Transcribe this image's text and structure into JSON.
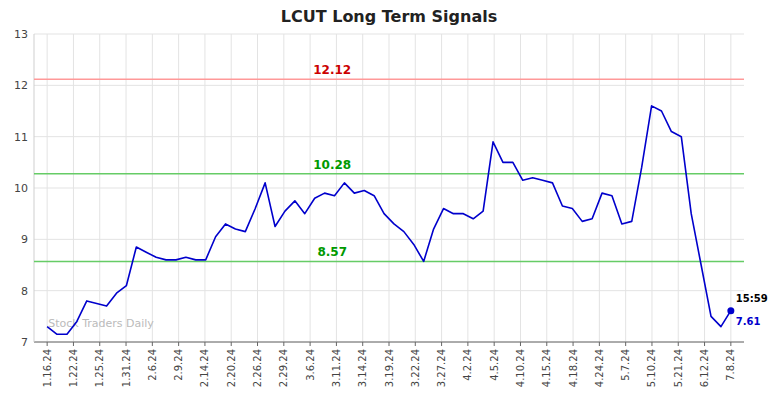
{
  "chart_data": {
    "type": "line",
    "title": "LCUT Long Term Signals",
    "x": [
      0,
      0.376812,
      0.753623,
      1.130435,
      1.507246,
      1.884058,
      2.26087,
      2.637681,
      3.014493,
      3.391304,
      3.768116,
      4.144928,
      4.521739,
      4.898551,
      5.275362,
      5.652174,
      6.028986,
      6.405797,
      6.782609,
      7.15942,
      7.536232,
      7.913043,
      8.289855,
      8.666667,
      9.043478,
      9.42029,
      9.797101,
      10.173913,
      10.550725,
      10.927536,
      11.304348,
      11.681159,
      12.057971,
      12.434783,
      12.811594,
      13.188406,
      13.565217,
      13.942029,
      14.318841,
      14.695652,
      15.072464,
      15.449275,
      15.826087,
      16.202899,
      16.57971,
      16.956522,
      17.333333,
      17.710145,
      18.086957,
      18.463768,
      18.84058,
      19.217391,
      19.594203,
      19.971014,
      20.347826,
      20.724638,
      21.101449,
      21.478261,
      21.855072,
      22.231884,
      22.608696,
      22.985507,
      23.362319,
      23.73913,
      24.115942,
      24.492754,
      24.869565,
      25.246377,
      25.623188,
      26
    ],
    "values": [
      7.3,
      7.15,
      7.15,
      7.4,
      7.8,
      7.75,
      7.7,
      7.95,
      8.1,
      8.85,
      8.75,
      8.65,
      8.6,
      8.6,
      8.65,
      8.6,
      8.6,
      9.05,
      9.3,
      9.2,
      9.15,
      9.6,
      10.1,
      9.25,
      9.55,
      9.75,
      9.5,
      9.8,
      9.9,
      9.85,
      10.1,
      9.9,
      9.95,
      9.85,
      9.5,
      9.3,
      9.15,
      8.9,
      8.57,
      9.2,
      9.6,
      9.5,
      9.5,
      9.4,
      9.55,
      10.9,
      10.5,
      10.5,
      10.15,
      10.2,
      10.15,
      10.1,
      9.65,
      9.6,
      9.35,
      9.4,
      9.9,
      9.85,
      9.3,
      9.35,
      10.4,
      11.6,
      11.5,
      11.1,
      11.0,
      9.5,
      8.5,
      7.5,
      7.3,
      7.61
    ],
    "color": "#0000cc",
    "xlim": [
      -0.5,
      26.5
    ],
    "xticks": [
      {
        "value": 0,
        "label": "1.16.24"
      },
      {
        "value": 1,
        "label": "1.22.24"
      },
      {
        "value": 2,
        "label": "1.25.24"
      },
      {
        "value": 3,
        "label": "1.31.24"
      },
      {
        "value": 4,
        "label": "2.6.24"
      },
      {
        "value": 5,
        "label": "2.9.24"
      },
      {
        "value": 6,
        "label": "2.14.24"
      },
      {
        "value": 7,
        "label": "2.20.24"
      },
      {
        "value": 8,
        "label": "2.26.24"
      },
      {
        "value": 9,
        "label": "2.29.24"
      },
      {
        "value": 10,
        "label": "3.6.24"
      },
      {
        "value": 11,
        "label": "3.11.24"
      },
      {
        "value": 12,
        "label": "3.14.24"
      },
      {
        "value": 13,
        "label": "3.19.24"
      },
      {
        "value": 14,
        "label": "3.22.24"
      },
      {
        "value": 15,
        "label": "3.27.24"
      },
      {
        "value": 16,
        "label": "4.2.24"
      },
      {
        "value": 17,
        "label": "4.5.24"
      },
      {
        "value": 18,
        "label": "4.10.24"
      },
      {
        "value": 19,
        "label": "4.15.24"
      },
      {
        "value": 20,
        "label": "4.18.24"
      },
      {
        "value": 21,
        "label": "4.24.24"
      },
      {
        "value": 22,
        "label": "5.7.24"
      },
      {
        "value": 23,
        "label": "5.10.24"
      },
      {
        "value": 24,
        "label": "5.21.24"
      },
      {
        "value": 25,
        "label": "6.12.24"
      },
      {
        "value": 26,
        "label": "7.8.24"
      }
    ],
    "ylim": [
      7.0,
      13.0
    ],
    "yticks": [
      7,
      8,
      9,
      10,
      11,
      12,
      13
    ],
    "grid": true,
    "reference_lines": [
      {
        "value": 12.12,
        "label": "12.12",
        "color": "#ff9999",
        "label_color": "#cc0000"
      },
      {
        "value": 10.28,
        "label": "10.28",
        "color": "#66cc66",
        "label_color": "#009900"
      },
      {
        "value": 8.57,
        "label": "8.57",
        "color": "#66cc66",
        "label_color": "#009900"
      }
    ],
    "last_point_labels": {
      "time": "15:59",
      "value": "7.61"
    },
    "watermark": "Stock Traders Daily"
  }
}
